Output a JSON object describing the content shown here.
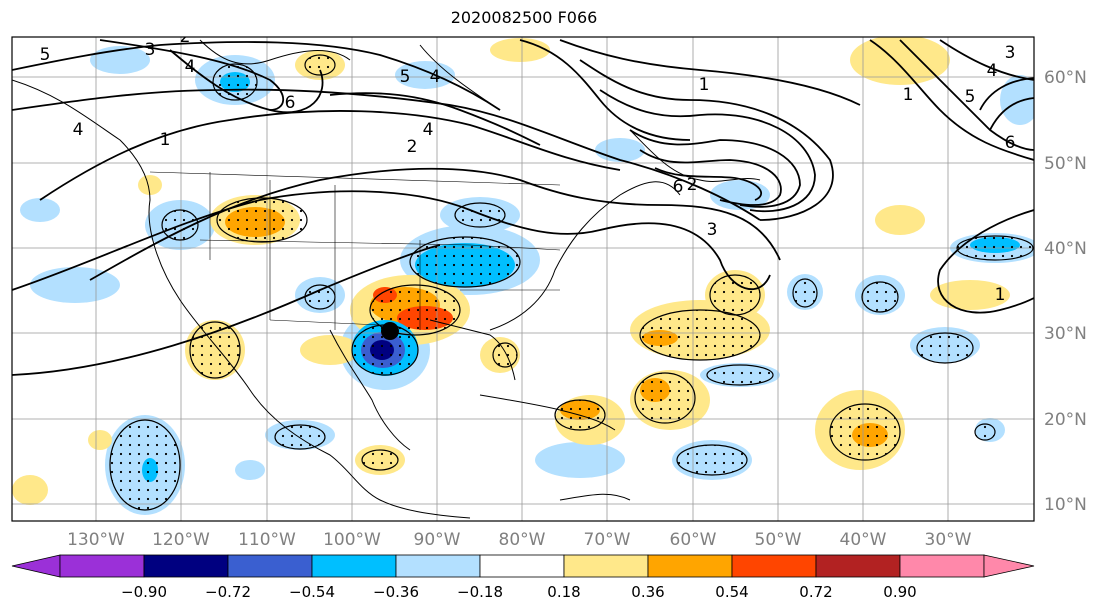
{
  "title": "2020082500 F066",
  "map": {
    "lon_labels": [
      "130°W",
      "120°W",
      "110°W",
      "100°W",
      "90°W",
      "80°W",
      "70°W",
      "60°W",
      "50°W",
      "40°W",
      "30°W"
    ],
    "lat_labels": [
      "60°N",
      "50°N",
      "40°N",
      "30°N",
      "20°N",
      "10°N"
    ],
    "contour_labels": [
      "5",
      "3",
      "2",
      "4",
      "6",
      "5",
      "4",
      "4",
      "2",
      "1",
      "1",
      "2",
      "3",
      "4",
      "5",
      "6",
      "1",
      "1",
      "3",
      "4",
      "6"
    ],
    "marker": "storm-center-dot"
  },
  "colorbar": {
    "tick_labels": [
      "−0.90",
      "−0.72",
      "−0.54",
      "−0.36",
      "−0.18",
      "0.18",
      "0.36",
      "0.54",
      "0.72",
      "0.90"
    ],
    "colors": [
      "#9b30d8",
      "#000080",
      "#3a5fd0",
      "#00bfff",
      "#b3e0ff",
      "#ffffff",
      "#ffe88a",
      "#ffa500",
      "#ff4500",
      "#b22222",
      "#ff88aa"
    ]
  }
}
